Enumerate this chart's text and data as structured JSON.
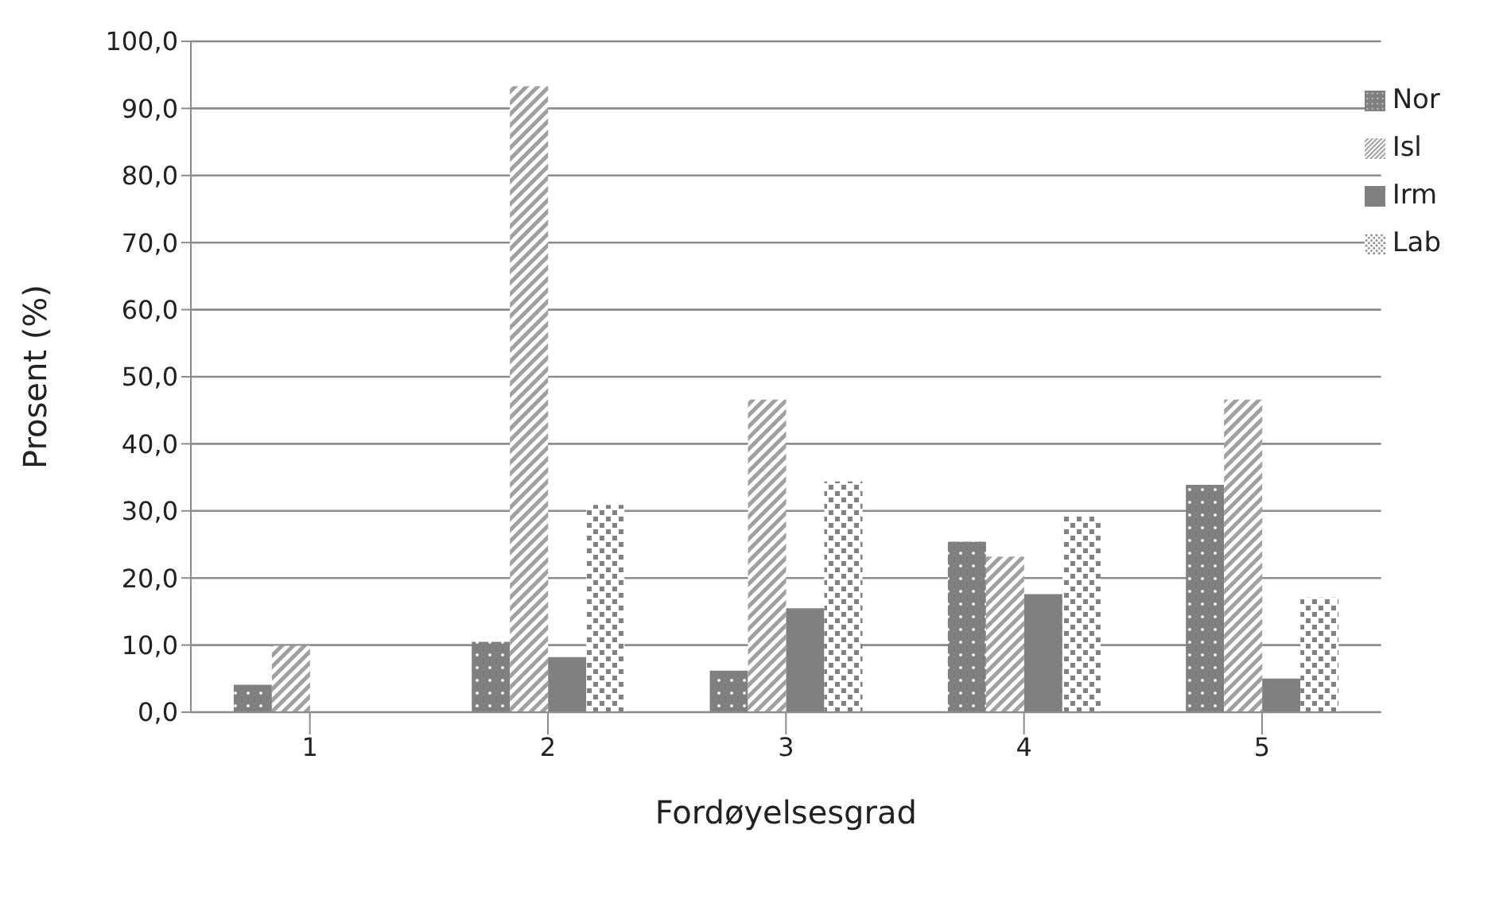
{
  "chart_data": {
    "type": "bar",
    "xlabel": "Fordøyelsesgrad",
    "ylabel": "Prosent (%)",
    "categories": [
      "1",
      "2",
      "3",
      "4",
      "5"
    ],
    "series": [
      {
        "name": "Nor",
        "color": "#808080",
        "values": [
          4.1,
          10.5,
          6.2,
          25.4,
          33.9
        ]
      },
      {
        "name": "Isl",
        "color": "#a0a0a0",
        "values": [
          9.9,
          93.3,
          46.6,
          23.2,
          46.6
        ]
      },
      {
        "name": "Irm",
        "color": "#808080",
        "values": [
          0,
          8.2,
          15.5,
          17.6,
          5.0
        ]
      },
      {
        "name": "Lab",
        "color": "#808080",
        "values": [
          0,
          30.9,
          34.4,
          29.2,
          17.1
        ]
      }
    ],
    "ylim": [
      0,
      100
    ],
    "yticks": [
      {
        "value": 0,
        "label": "0,0"
      },
      {
        "value": 10,
        "label": "10,0"
      },
      {
        "value": 20,
        "label": "20,0"
      },
      {
        "value": 30,
        "label": "30,0"
      },
      {
        "value": 40,
        "label": "40,0"
      },
      {
        "value": 50,
        "label": "50,0"
      },
      {
        "value": 60,
        "label": "60,0"
      },
      {
        "value": 70,
        "label": "70,0"
      },
      {
        "value": 80,
        "label": "80,0"
      },
      {
        "value": 90,
        "label": "90,0"
      },
      {
        "value": 100,
        "label": "100,0"
      }
    ],
    "grid": "y",
    "legend": "top right"
  }
}
